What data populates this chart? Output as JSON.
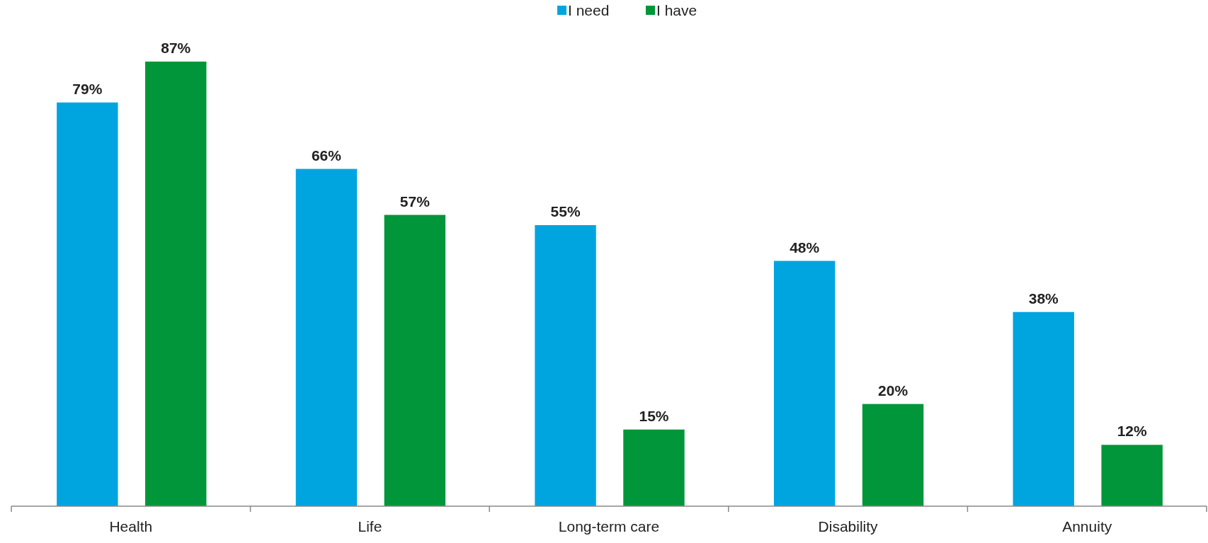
{
  "chart_data": {
    "type": "bar",
    "categories": [
      "Health",
      "Life",
      "Long-term care",
      "Disability",
      "Annuity"
    ],
    "series": [
      {
        "name": "I need",
        "color": "#00a5e0",
        "values": [
          79,
          66,
          55,
          48,
          38
        ],
        "value_labels": [
          "79%",
          "66%",
          "55%",
          "48%",
          "38%"
        ]
      },
      {
        "name": "I have",
        "color": "#009639",
        "values": [
          87,
          57,
          15,
          20,
          12
        ],
        "value_labels": [
          "87%",
          "57%",
          "15%",
          "20%",
          "12%"
        ]
      }
    ],
    "legend": "top"
  }
}
